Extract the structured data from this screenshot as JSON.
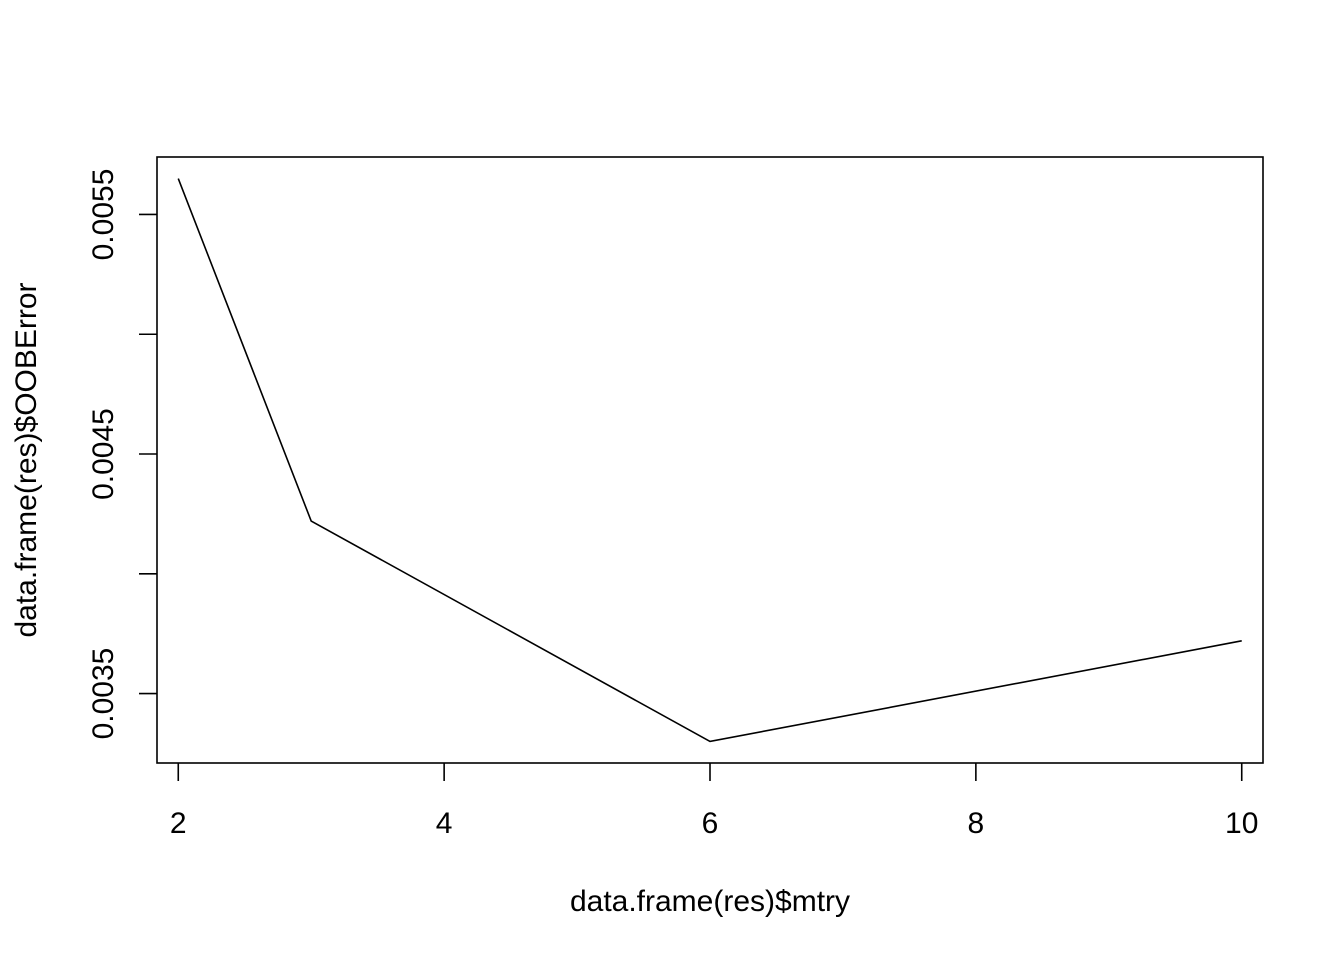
{
  "chart_data": {
    "type": "line",
    "title": "",
    "xlabel": "data.frame(res)$mtry",
    "ylabel": "data.frame(res)$OOBError",
    "x": [
      2,
      3,
      6,
      10
    ],
    "series": [
      {
        "values": [
          0.00565,
          0.00422,
          0.0033,
          0.00372
        ]
      }
    ],
    "xlim": [
      1.84,
      10.16
    ],
    "ylim": [
      0.00321,
      0.00574
    ],
    "x_ticks": [
      2,
      4,
      6,
      8,
      10
    ],
    "x_tick_labels": [
      "2",
      "4",
      "6",
      "8",
      "10"
    ],
    "y_ticks": [
      0.0035,
      0.004,
      0.0045,
      0.005,
      0.0055
    ],
    "y_tick_labels": [
      "0.0035",
      "",
      "0.0045",
      "",
      "0.0055"
    ],
    "grid": false,
    "legend": "none",
    "line_color": "#000000"
  }
}
